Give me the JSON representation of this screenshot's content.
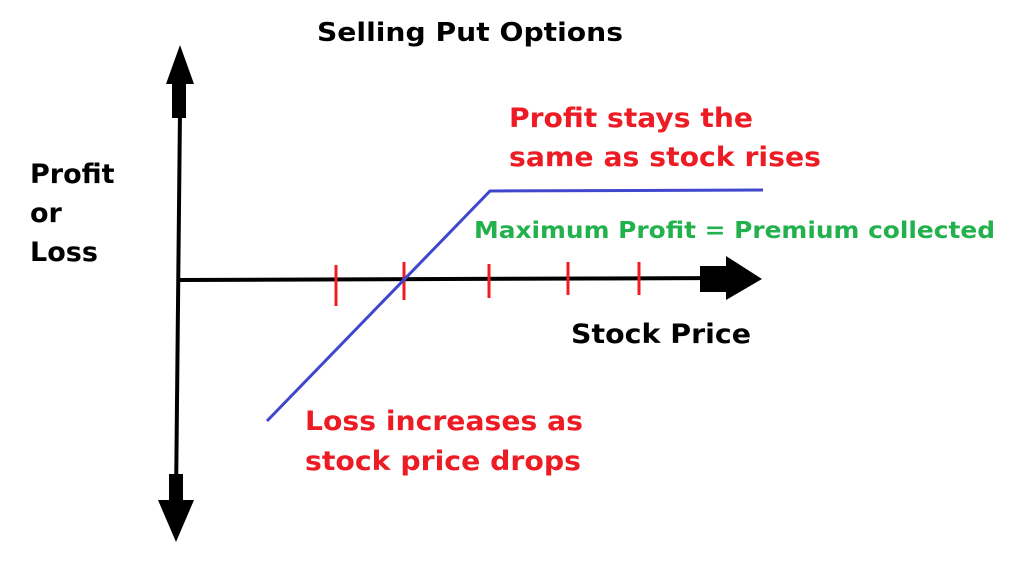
{
  "title": "Selling Put Options",
  "y_axis_label": [
    "Profit",
    "or",
    "Loss"
  ],
  "x_axis_label": "Stock Price",
  "annotations": {
    "profit_flat": [
      "Profit stays the",
      "same as stock rises"
    ],
    "max_profit": "Maximum Profit = Premium collected",
    "loss": [
      "Loss increases as",
      "stock price drops"
    ]
  },
  "colors": {
    "axes": "#000000",
    "payoff_line": "#3f48cc",
    "ticks": "#ed1c24",
    "red_text": "#ed1c24",
    "green_text": "#22b14c"
  }
}
